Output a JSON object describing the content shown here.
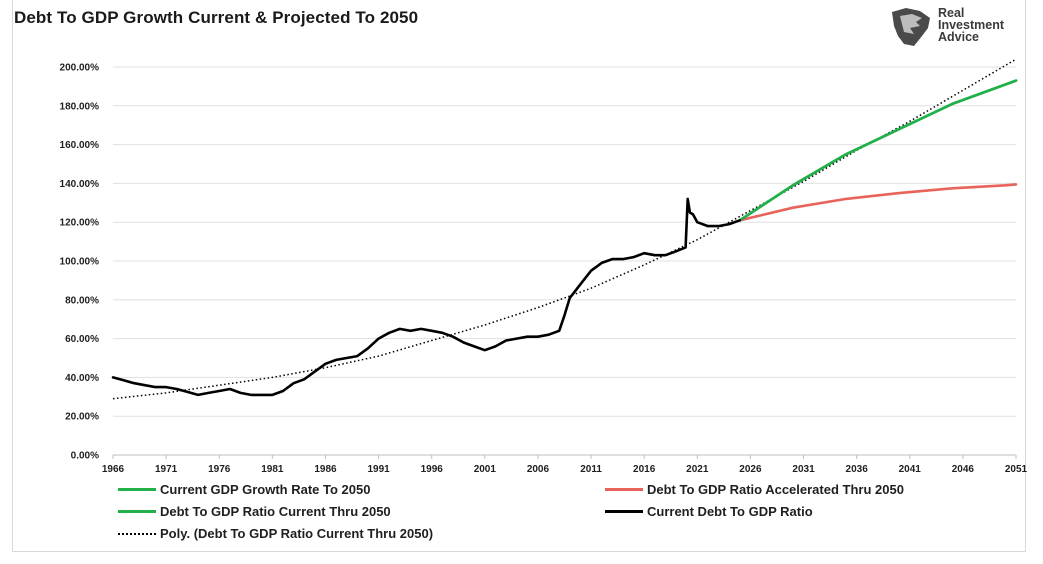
{
  "chart_data": {
    "type": "line",
    "title": "Debt To GDP Growth Current & Projected To 2050",
    "brand": [
      "Real",
      "Investment",
      "Advice"
    ],
    "xlabel": "",
    "ylabel": "",
    "xlim": [
      1966,
      2051
    ],
    "ylim": [
      0,
      200
    ],
    "x_ticks": [
      "1966",
      "1971",
      "1976",
      "1981",
      "1986",
      "1991",
      "1996",
      "2001",
      "2006",
      "2011",
      "2016",
      "2021",
      "2026",
      "2031",
      "2036",
      "2041",
      "2046",
      "2051"
    ],
    "y_ticks": [
      "0.00%",
      "20.00%",
      "40.00%",
      "60.00%",
      "80.00%",
      "100.00%",
      "120.00%",
      "140.00%",
      "160.00%",
      "180.00%",
      "200.00%"
    ],
    "series": [
      {
        "name": "Current GDP Growth Rate To 2050",
        "color": "#22b04b",
        "style": "solid",
        "x": [
          2025,
          2030,
          2035,
          2040,
          2045,
          2050,
          2051
        ],
        "values": [
          121,
          139,
          155,
          168,
          181,
          191,
          193
        ]
      },
      {
        "name": "Debt To GDP Ratio Accelerated Thru 2050",
        "color": "#e8635a",
        "style": "solid",
        "x": [
          2025,
          2030,
          2035,
          2040,
          2045,
          2050,
          2051
        ],
        "values": [
          121,
          127.5,
          132,
          135,
          137.5,
          139,
          139.5
        ]
      },
      {
        "name": "Debt To GDP Ratio Current Thru 2050",
        "color": "#22b04b",
        "style": "solid",
        "x": [
          2025,
          2030,
          2035,
          2040,
          2045,
          2050,
          2051
        ],
        "values": [
          121,
          139,
          155,
          168,
          181,
          191,
          193
        ]
      },
      {
        "name": "Current Debt To GDP Ratio",
        "color": "#000000",
        "style": "solid",
        "x": [
          1966,
          1967,
          1968,
          1969,
          1970,
          1971,
          1972,
          1973,
          1974,
          1975,
          1976,
          1977,
          1978,
          1979,
          1980,
          1981,
          1982,
          1983,
          1984,
          1985,
          1986,
          1987,
          1988,
          1989,
          1990,
          1991,
          1992,
          1993,
          1994,
          1995,
          1996,
          1997,
          1998,
          1999,
          2000,
          2001,
          2002,
          2003,
          2004,
          2005,
          2006,
          2007,
          2008,
          2008.5,
          2009,
          2010,
          2011,
          2012,
          2013,
          2014,
          2015,
          2016,
          2017,
          2018,
          2019,
          2019.9,
          2020.1,
          2020.3,
          2020.6,
          2021,
          2022,
          2023,
          2024,
          2025
        ],
        "values": [
          40,
          38.5,
          37,
          36,
          35,
          35,
          34,
          32.5,
          31,
          32,
          33,
          34,
          32,
          31,
          31,
          31,
          33,
          37,
          39,
          43,
          47,
          49,
          50,
          51,
          55,
          60,
          63,
          65,
          64,
          65,
          64,
          63,
          61,
          58,
          56,
          54,
          56,
          59,
          60,
          61,
          61,
          62,
          64,
          72,
          81,
          88,
          95,
          99,
          101,
          101,
          102,
          104,
          103,
          103,
          105,
          107,
          132,
          125,
          124,
          120,
          118,
          118,
          119,
          121
        ]
      },
      {
        "name": "Poly. (Debt To GDP Ratio Current Thru 2050)",
        "color": "#000000",
        "style": "dotted",
        "x": [
          1966,
          1971,
          1976,
          1981,
          1986,
          1991,
          1996,
          2001,
          2006,
          2011,
          2016,
          2021,
          2026,
          2031,
          2036,
          2041,
          2046,
          2051
        ],
        "values": [
          29,
          32,
          36,
          40,
          45,
          51,
          59,
          67,
          76,
          86,
          98,
          111,
          126,
          141,
          157,
          172,
          188,
          204
        ]
      }
    ],
    "legend": [
      {
        "label": "Current GDP Growth Rate To 2050",
        "color": "#22b04b",
        "style": "solid"
      },
      {
        "label": "Debt To GDP Ratio Accelerated Thru 2050",
        "color": "#e8635a",
        "style": "solid"
      },
      {
        "label": "Debt To GDP Ratio Current Thru 2050",
        "color": "#22b04b",
        "style": "solid"
      },
      {
        "label": "Current Debt To GDP Ratio",
        "color": "#000000",
        "style": "solid"
      },
      {
        "label": "Poly. (Debt To GDP Ratio Current Thru 2050)",
        "color": "#000000",
        "style": "dotted"
      }
    ],
    "grid": true,
    "legend_position": "bottom"
  }
}
